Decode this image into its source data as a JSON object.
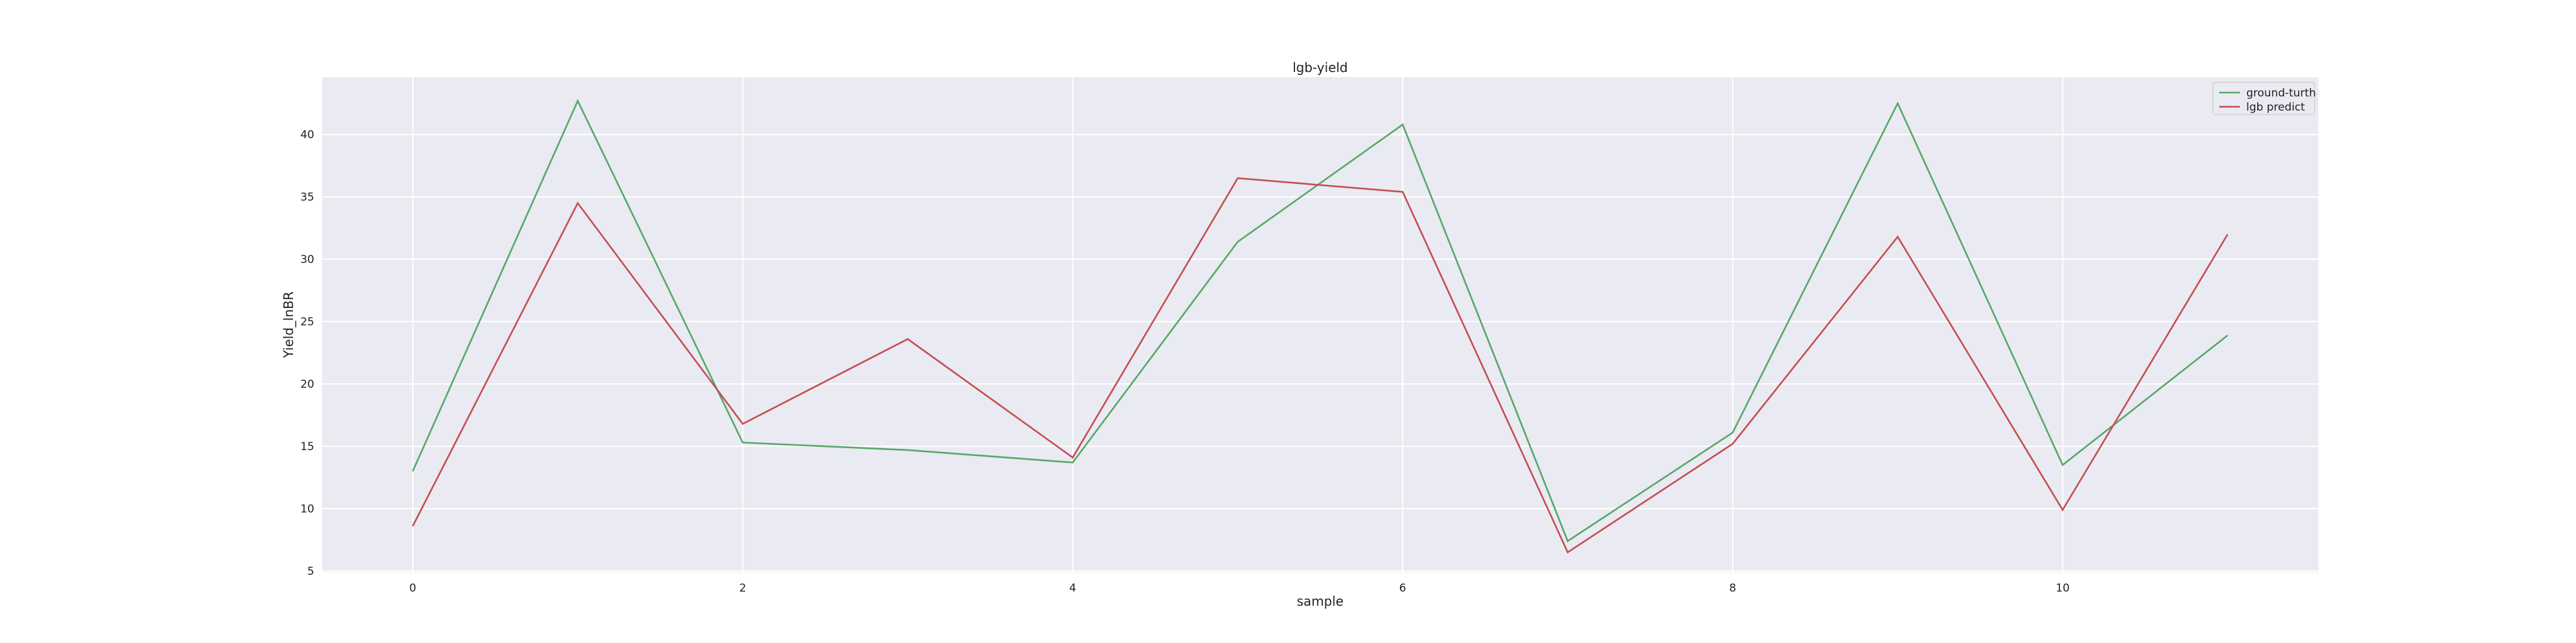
{
  "chart_data": {
    "type": "line",
    "title": "lgb-yield",
    "xlabel": "sample",
    "ylabel": "Yield_lnBR",
    "x": [
      0,
      1,
      2,
      3,
      4,
      5,
      6,
      7,
      8,
      9,
      10,
      11
    ],
    "xlim": [
      -0.55,
      11.55
    ],
    "ylim": [
      4.9,
      44.6
    ],
    "xticks": [
      0,
      2,
      4,
      6,
      8,
      10
    ],
    "yticks": [
      5,
      10,
      15,
      20,
      25,
      30,
      35,
      40
    ],
    "grid": true,
    "legend_position": "top-right",
    "background": "#EAEAF2",
    "series": [
      {
        "name": "ground-turth",
        "color": "#55A868",
        "values": [
          13.0,
          42.7,
          15.3,
          14.7,
          13.7,
          31.4,
          40.8,
          7.4,
          16.1,
          42.5,
          13.5,
          23.9
        ]
      },
      {
        "name": "lgb predict",
        "color": "#C44E52",
        "values": [
          8.6,
          34.5,
          16.8,
          23.6,
          14.1,
          36.5,
          35.4,
          6.5,
          15.2,
          31.8,
          9.9,
          32.0
        ]
      }
    ]
  }
}
